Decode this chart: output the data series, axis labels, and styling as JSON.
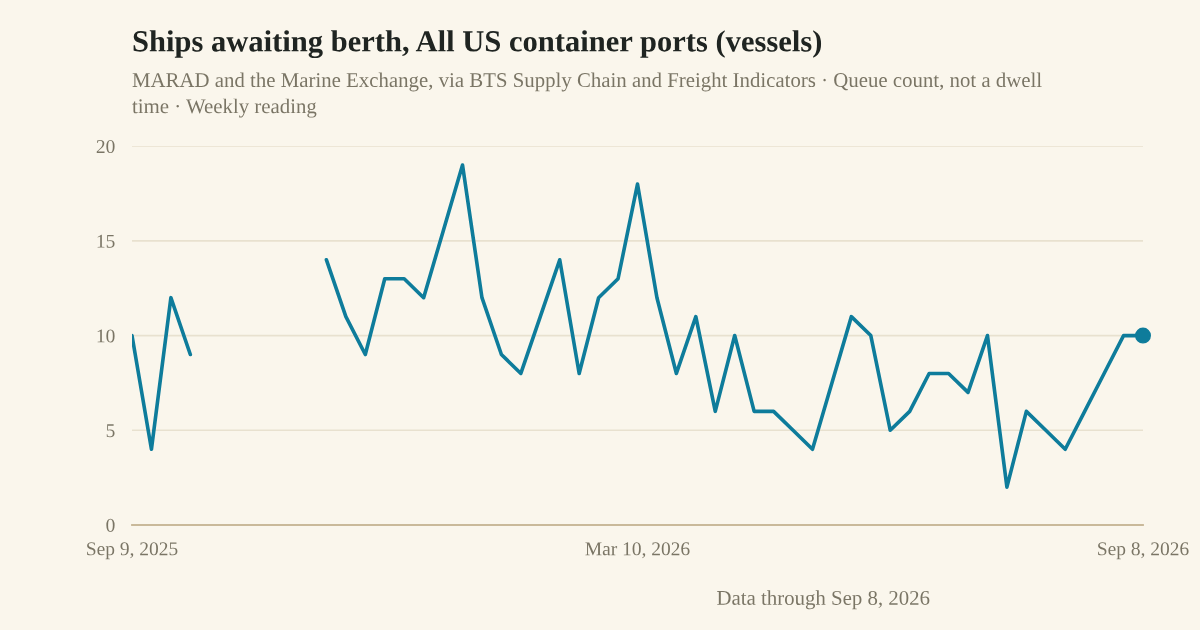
{
  "chart_data": {
    "type": "line",
    "title": "Ships awaiting berth, All US container ports (vessels)",
    "subtitle": "MARAD and the Marine Exchange, via BTS Supply Chain and Freight Indicators · Queue count, not a dwell time · Weekly reading",
    "x": [
      "2025-09-09",
      "2025-09-16",
      "2025-09-23",
      "2025-09-30",
      "2025-10-07",
      "2025-10-14",
      "2025-10-21",
      "2025-10-28",
      "2025-11-04",
      "2025-11-11",
      "2025-11-18",
      "2025-11-25",
      "2025-12-02",
      "2025-12-09",
      "2025-12-16",
      "2025-12-23",
      "2025-12-30",
      "2026-01-06",
      "2026-01-13",
      "2026-01-20",
      "2026-01-27",
      "2026-02-03",
      "2026-02-10",
      "2026-02-17",
      "2026-02-24",
      "2026-03-03",
      "2026-03-10",
      "2026-03-17",
      "2026-03-24",
      "2026-03-31",
      "2026-04-07",
      "2026-04-14",
      "2026-04-21",
      "2026-04-28",
      "2026-05-05",
      "2026-05-12",
      "2026-05-19",
      "2026-05-26",
      "2026-06-02",
      "2026-06-09",
      "2026-06-16",
      "2026-06-23",
      "2026-06-30",
      "2026-07-07",
      "2026-07-14",
      "2026-07-21",
      "2026-07-28",
      "2026-08-04",
      "2026-08-11",
      "2026-08-18",
      "2026-08-25",
      "2026-09-01",
      "2026-09-08"
    ],
    "series": [
      {
        "color": "#0e7c9b",
        "values": [
          10,
          4,
          12,
          9,
          null,
          null,
          null,
          null,
          null,
          null,
          14,
          11,
          9,
          13,
          13,
          12,
          15.5,
          19,
          12,
          9,
          8,
          11,
          14,
          8,
          12,
          13,
          18,
          12,
          8,
          11,
          6,
          10,
          6,
          6,
          5,
          4,
          7.5,
          11,
          10,
          5,
          6,
          8,
          8,
          7,
          10,
          2,
          6,
          5,
          4,
          6,
          8,
          10,
          10
        ]
      },
      {
        "type": "scatter",
        "color": "#0e7c9b",
        "x": [
          "2026-09-08"
        ],
        "values": [
          10
        ]
      }
    ],
    "xlim": [
      "2025-09-09",
      "2026-09-08"
    ],
    "xticks": [
      {
        "value": "2025-09-09",
        "label": "Sep 9, 2025"
      },
      {
        "value": "2026-03-10",
        "label": "Mar 10, 2026"
      },
      {
        "value": "2026-09-08",
        "label": "Sep 8, 2026"
      }
    ],
    "ylim": [
      0,
      20
    ],
    "yticks": [
      0,
      5,
      10,
      15,
      20
    ],
    "grid": "y",
    "annotations": [
      "Data through Sep 8, 2026"
    ]
  }
}
